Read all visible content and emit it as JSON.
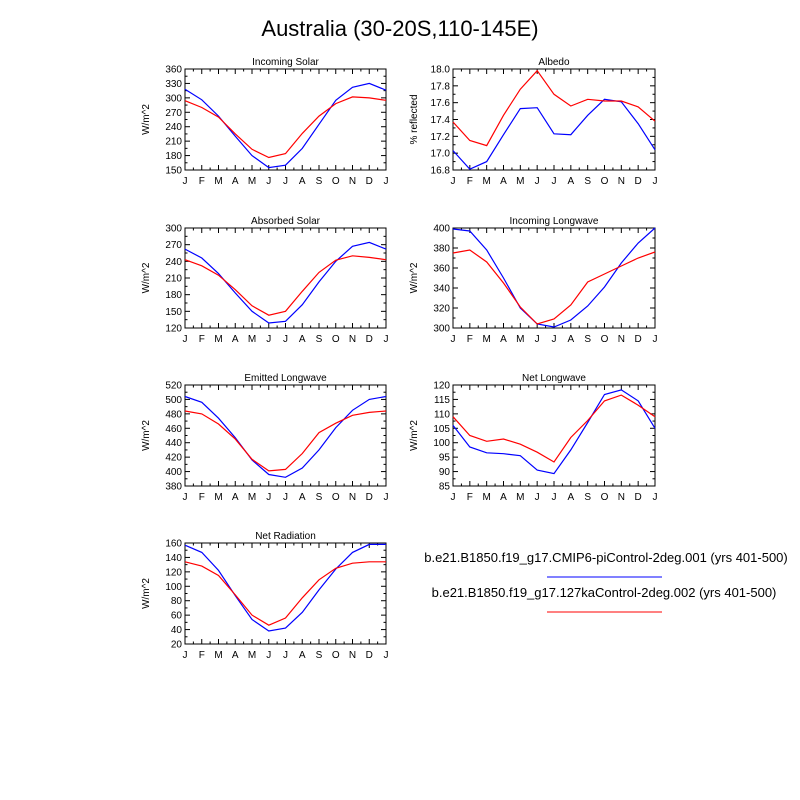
{
  "figure": {
    "title": "Australia (30-20S,110-145E)"
  },
  "legend": {
    "entries": [
      {
        "label": "b.e21.B1850.f19_g17.CMIP6-piControl-2deg.001 (yrs 401-500)",
        "color": "#0000ff"
      },
      {
        "label": "b.e21.B1850.f19_g17.127kaControl-2deg.002 (yrs 401-500)",
        "color": "#ff0000"
      }
    ]
  },
  "chart_data": [
    {
      "type": "line",
      "title": "Incoming Solar",
      "ylabel": "W/m^2",
      "categories": [
        "J",
        "F",
        "M",
        "A",
        "M",
        "J",
        "J",
        "A",
        "S",
        "O",
        "N",
        "D",
        "J"
      ],
      "ylim": [
        150,
        360
      ],
      "yticks": [
        150,
        180,
        210,
        240,
        270,
        300,
        330,
        360
      ],
      "series": [
        {
          "color": "#0000ff",
          "values": [
            318,
            296,
            262,
            220,
            180,
            155,
            160,
            195,
            245,
            295,
            322,
            330,
            316
          ]
        },
        {
          "color": "#ff0000",
          "values": [
            294,
            280,
            260,
            225,
            193,
            176,
            184,
            226,
            262,
            288,
            302,
            300,
            295
          ]
        }
      ]
    },
    {
      "type": "line",
      "title": "Albedo",
      "ylabel": "% reflected",
      "categories": [
        "J",
        "F",
        "M",
        "A",
        "M",
        "J",
        "J",
        "A",
        "S",
        "O",
        "N",
        "D",
        "J"
      ],
      "ylim": [
        16.8,
        18.0
      ],
      "yticks": [
        "16.8",
        "17.0",
        "17.2",
        "17.4",
        "17.6",
        "17.8",
        "18.0"
      ],
      "series": [
        {
          "color": "#0000ff",
          "values": [
            17.03,
            16.81,
            16.9,
            17.22,
            17.53,
            17.54,
            17.23,
            17.22,
            17.45,
            17.64,
            17.61,
            17.35,
            17.04
          ]
        },
        {
          "color": "#ff0000",
          "values": [
            17.37,
            17.15,
            17.09,
            17.45,
            17.76,
            17.98,
            17.7,
            17.56,
            17.64,
            17.62,
            17.62,
            17.55,
            17.38
          ]
        }
      ]
    },
    {
      "type": "line",
      "title": "Absorbed Solar",
      "ylabel": "W/m^2",
      "categories": [
        "J",
        "F",
        "M",
        "A",
        "M",
        "J",
        "J",
        "A",
        "S",
        "O",
        "N",
        "D",
        "J"
      ],
      "ylim": [
        120,
        300
      ],
      "yticks": [
        120,
        150,
        180,
        210,
        240,
        270,
        300
      ],
      "series": [
        {
          "color": "#0000ff",
          "values": [
            262,
            246,
            218,
            183,
            150,
            129,
            132,
            162,
            203,
            240,
            267,
            274,
            262
          ]
        },
        {
          "color": "#ff0000",
          "values": [
            243,
            232,
            215,
            189,
            160,
            143,
            150,
            186,
            220,
            242,
            250,
            247,
            243
          ]
        }
      ]
    },
    {
      "type": "line",
      "title": "Incoming Longwave",
      "ylabel": "W/m^2",
      "categories": [
        "J",
        "F",
        "M",
        "A",
        "M",
        "J",
        "J",
        "A",
        "S",
        "O",
        "N",
        "D",
        "J"
      ],
      "ylim": [
        300,
        400
      ],
      "yticks": [
        300,
        320,
        340,
        360,
        380,
        400
      ],
      "series": [
        {
          "color": "#0000ff",
          "values": [
            399,
            397,
            378,
            350,
            320,
            304,
            301,
            308,
            322,
            341,
            365,
            385,
            400
          ]
        },
        {
          "color": "#ff0000",
          "values": [
            375,
            378,
            366,
            345,
            321,
            304,
            309,
            323,
            346,
            354,
            362,
            370,
            376
          ]
        }
      ]
    },
    {
      "type": "line",
      "title": "Emitted Longwave",
      "ylabel": "W/m^2",
      "categories": [
        "J",
        "F",
        "M",
        "A",
        "M",
        "J",
        "J",
        "A",
        "S",
        "O",
        "N",
        "D",
        "J"
      ],
      "ylim": [
        380,
        520
      ],
      "yticks": [
        380,
        400,
        420,
        440,
        460,
        480,
        500,
        520
      ],
      "series": [
        {
          "color": "#0000ff",
          "values": [
            504,
            496,
            474,
            447,
            416,
            396,
            392,
            405,
            430,
            461,
            485,
            500,
            504
          ]
        },
        {
          "color": "#ff0000",
          "values": [
            484,
            480,
            466,
            445,
            417,
            401,
            403,
            425,
            454,
            467,
            478,
            482,
            484
          ]
        }
      ]
    },
    {
      "type": "line",
      "title": "Net Longwave",
      "ylabel": "W/m^2",
      "categories": [
        "J",
        "F",
        "M",
        "A",
        "M",
        "J",
        "J",
        "A",
        "S",
        "O",
        "N",
        "D",
        "J"
      ],
      "ylim": [
        85,
        120
      ],
      "yticks": [
        85,
        90,
        95,
        100,
        105,
        110,
        115,
        120
      ],
      "series": [
        {
          "color": "#0000ff",
          "values": [
            106,
            98.5,
            96.5,
            96.2,
            95.5,
            90.5,
            89.3,
            97.5,
            107,
            116.7,
            118.3,
            114.5,
            105
          ]
        },
        {
          "color": "#ff0000",
          "values": [
            109,
            102.5,
            100.5,
            101.3,
            99.5,
            96.7,
            93.3,
            101.8,
            107.7,
            114.5,
            116.5,
            113,
            109
          ]
        }
      ]
    },
    {
      "type": "line",
      "title": "Net Radiation",
      "ylabel": "W/m^2",
      "categories": [
        "J",
        "F",
        "M",
        "A",
        "M",
        "J",
        "J",
        "A",
        "S",
        "O",
        "N",
        "D",
        "J"
      ],
      "ylim": [
        20,
        160
      ],
      "yticks": [
        20,
        40,
        60,
        80,
        100,
        120,
        140,
        160
      ],
      "series": [
        {
          "color": "#0000ff",
          "values": [
            157,
            147,
            122,
            87,
            54,
            38,
            42,
            64,
            95,
            124,
            147,
            158,
            158
          ]
        },
        {
          "color": "#ff0000",
          "values": [
            134,
            128,
            115,
            88,
            60,
            46,
            56,
            84,
            109,
            125,
            132,
            134,
            134
          ]
        }
      ]
    }
  ]
}
